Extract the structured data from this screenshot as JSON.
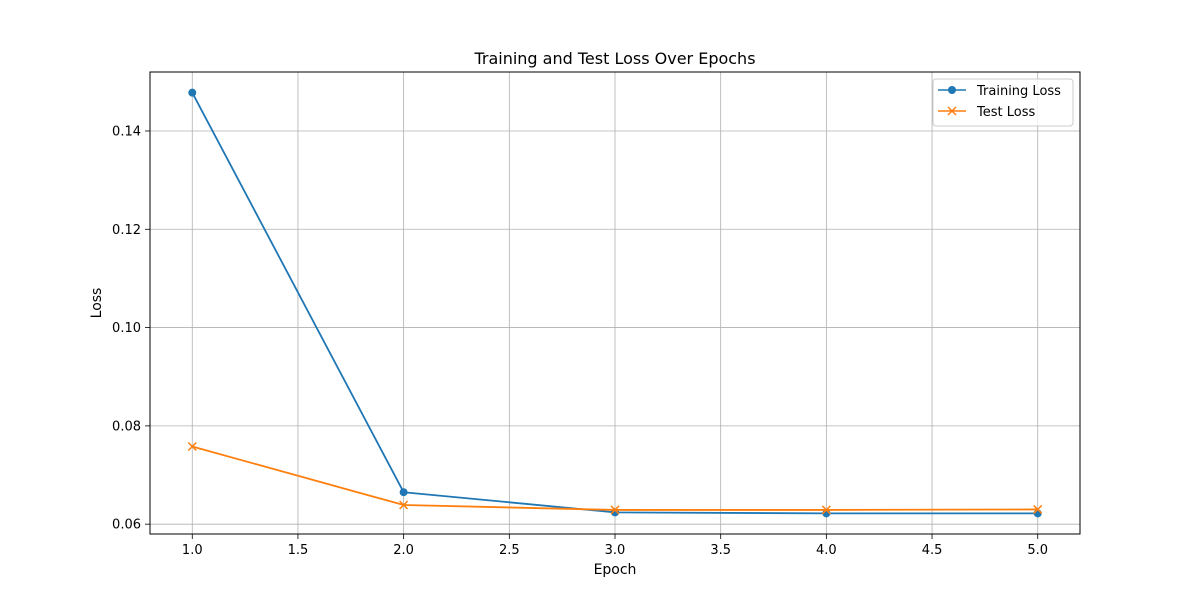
{
  "chart_data": {
    "type": "line",
    "title": "Training and Test Loss Over Epochs",
    "xlabel": "Epoch",
    "ylabel": "Loss",
    "x": [
      1,
      2,
      3,
      4,
      5
    ],
    "xlim": [
      0.8,
      5.2
    ],
    "ylim": [
      0.058,
      0.152
    ],
    "xticks": [
      1.0,
      1.5,
      2.0,
      2.5,
      3.0,
      3.5,
      4.0,
      4.5,
      5.0
    ],
    "xtick_labels": [
      "1.0",
      "1.5",
      "2.0",
      "2.5",
      "3.0",
      "3.5",
      "4.0",
      "4.5",
      "5.0"
    ],
    "yticks": [
      0.06,
      0.08,
      0.1,
      0.12,
      0.14
    ],
    "ytick_labels": [
      "0.06",
      "0.08",
      "0.10",
      "0.12",
      "0.14"
    ],
    "grid": true,
    "legend_position": "top-right",
    "series": [
      {
        "name": "Training Loss",
        "color": "#1f77b4",
        "marker": "circle",
        "values": [
          0.1478,
          0.0665,
          0.0624,
          0.0622,
          0.0622
        ]
      },
      {
        "name": "Test Loss",
        "color": "#ff7f0e",
        "marker": "x",
        "values": [
          0.0758,
          0.0639,
          0.0629,
          0.0629,
          0.063
        ]
      }
    ]
  }
}
